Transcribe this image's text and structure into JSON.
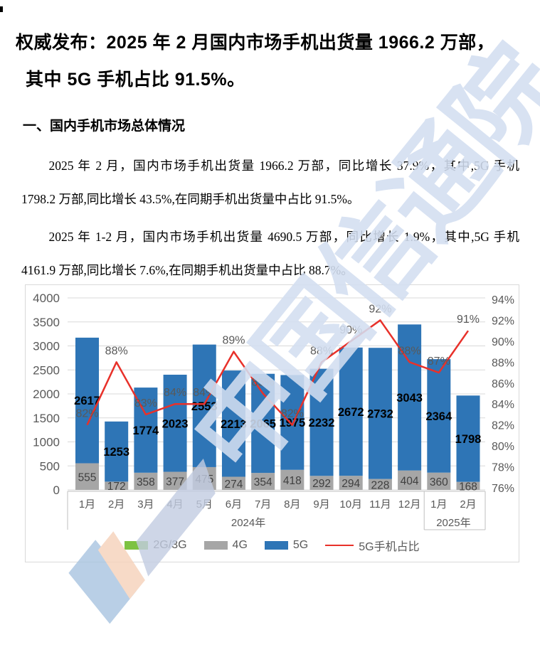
{
  "page": {
    "title_line1": "权威发布：2025 年 2 月国内市场手机出货量 1966.2 万部，",
    "title_line2": "其中 5G 手机占比 91.5%。",
    "section_heading": "一、国内手机市场总体情况",
    "paragraph1": "2025 年 2 月，国内市场手机出货量 1966.2 万部，同比增长 37.9%，其中,5G 手机 1798.2 万部,同比增长 43.5%,在同期手机出货量中占比 91.5%。",
    "paragraph2": "2025 年 1-2 月，国内市场手机出货量 4690.5 万部，同比增长 1.9%，其中,5G 手机 4161.9 万部,同比增长 7.6%,在同期手机出货量中占比 88.7%。",
    "watermark_text": "中国信通院"
  },
  "chart_data": {
    "type": "bar",
    "subtype": "stacked-column-with-secondary-axis-line",
    "categories": [
      "1月",
      "2月",
      "3月",
      "4月",
      "5月",
      "6月",
      "7月",
      "8月",
      "9月",
      "10月",
      "11月",
      "12月",
      "1月",
      "2月"
    ],
    "category_groups": [
      {
        "label": "2024年",
        "span": 12
      },
      {
        "label": "2025年",
        "span": 2
      }
    ],
    "series": [
      {
        "name": "2G/3G",
        "kind": "bar",
        "color": "#7DC242",
        "values": [
          0,
          0,
          0,
          0,
          0,
          0,
          0,
          0,
          0,
          0,
          0,
          0,
          0,
          0
        ]
      },
      {
        "name": "4G",
        "kind": "bar",
        "color": "#A6A6A6",
        "values": [
          555,
          172,
          358,
          377,
          475,
          274,
          354,
          418,
          292,
          294,
          228,
          404,
          360,
          168
        ]
      },
      {
        "name": "5G",
        "kind": "bar",
        "color": "#2E75B6",
        "values": [
          2617,
          1253,
          1774,
          2023,
          2553,
          2213,
          2065,
          1975,
          2232,
          2672,
          2732,
          3043,
          2364,
          1798
        ]
      },
      {
        "name": "5G手机占比",
        "kind": "line",
        "axis": "right",
        "color": "#E8312A",
        "values": [
          82,
          88,
          83,
          84,
          84,
          89,
          85,
          82,
          88,
          90,
          92,
          88,
          87,
          91
        ],
        "label_suffix": "%"
      }
    ],
    "left_axis": {
      "min": 0,
      "max": 4000,
      "step": 500,
      "ticks": [
        "4000",
        "3500",
        "3000",
        "2500",
        "2000",
        "1500",
        "1000",
        "500",
        "0"
      ]
    },
    "right_axis": {
      "min": 76,
      "max": 94,
      "step": 2,
      "ticks": [
        "94%",
        "92%",
        "90%",
        "88%",
        "86%",
        "84%",
        "82%",
        "80%",
        "78%",
        "76%"
      ]
    },
    "grid": true,
    "legend_position": "bottom",
    "title": "",
    "xlabel": "",
    "ylabel": ""
  }
}
